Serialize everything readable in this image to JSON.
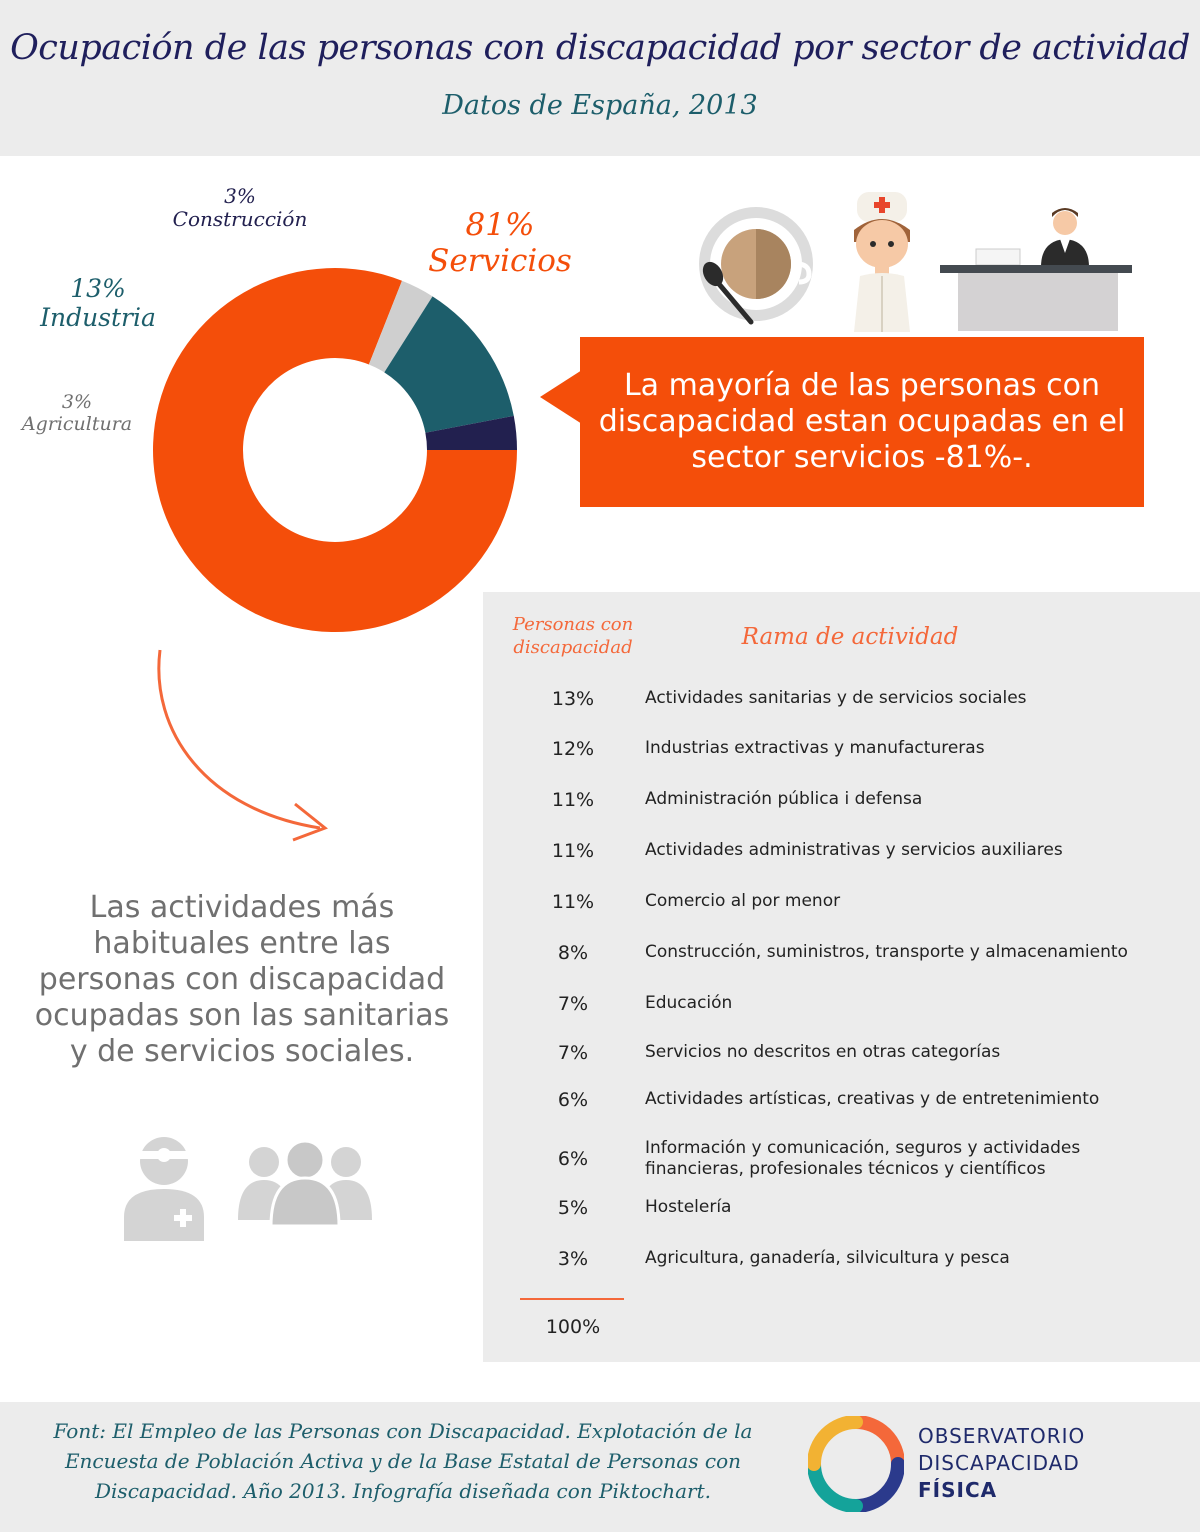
{
  "header": {
    "title": "Ocupación de las personas con discapacidad por sector de actividad",
    "subtitle": "Datos de España, 2013"
  },
  "chart_data": {
    "type": "pie",
    "variant": "donut",
    "categories": [
      "Servicios",
      "Agricultura",
      "Industria",
      "Construcción"
    ],
    "values": [
      81,
      3,
      13,
      3
    ],
    "unit": "%",
    "labels": [
      {
        "pct": "81%",
        "name": "Servicios"
      },
      {
        "pct": "3%",
        "name": "Agricultura"
      },
      {
        "pct": "13%",
        "name": "Industria"
      },
      {
        "pct": "3%",
        "name": "Construcción"
      }
    ],
    "colors": [
      "#f44e0a",
      "#cfcfcf",
      "#1d5e6b",
      "#22204f"
    ]
  },
  "callout": {
    "text": "La mayoría de las personas con discapacidad estan ocupadas en el sector servicios -81%-."
  },
  "note": {
    "text": "Las actividades más habituales entre las personas con discapacidad ocupadas son las sanitarias y de servicios sociales."
  },
  "table": {
    "col1_header": "Personas con discapacidad",
    "col2_header": "Rama de actividad",
    "rows": [
      {
        "pct": "13%",
        "name": "Actividades sanitarias y de servicios sociales"
      },
      {
        "pct": "12%",
        "name": "Industrias extractivas y manufactureras"
      },
      {
        "pct": "11%",
        "name": "Administración pública i defensa"
      },
      {
        "pct": "11%",
        "name": "Actividades administrativas y servicios auxiliares"
      },
      {
        "pct": "11%",
        "name": "Comercio al por menor"
      },
      {
        "pct": "8%",
        "name": "Construcción, suministros, transporte y almacenamiento"
      },
      {
        "pct": "7%",
        "name": "Educación"
      },
      {
        "pct": "7%",
        "name": "Servicios no descritos en otras categorías"
      },
      {
        "pct": "6%",
        "name": "Actividades artísticas, creativas y de entretenimiento"
      },
      {
        "pct": "6%",
        "name": "Información y comunicación, seguros y actividades financieras, profesionales técnicos y científicos"
      },
      {
        "pct": "5%",
        "name": "Hostelería"
      },
      {
        "pct": "3%",
        "name": "Agricultura, ganadería, silvicultura y pesca"
      }
    ],
    "total": "100%"
  },
  "footer": {
    "source": "Font: El Empleo de las Personas con Discapacidad. Explotación de la Encuesta de Población Activa y de la Base Estatal de Personas con Discapacidad. Año 2013. Infografía diseñada con Piktochart.",
    "logo_line1": "OBSERVATORIO",
    "logo_line2": "DISCAPACIDAD",
    "logo_line3": "FÍSICA"
  },
  "icons": [
    "coffee-cup-icon",
    "nurse-icon",
    "receptionist-desk-icon",
    "arrow-curve-icon",
    "doctor-icon",
    "people-group-icon",
    "observatorio-logo-icon"
  ]
}
